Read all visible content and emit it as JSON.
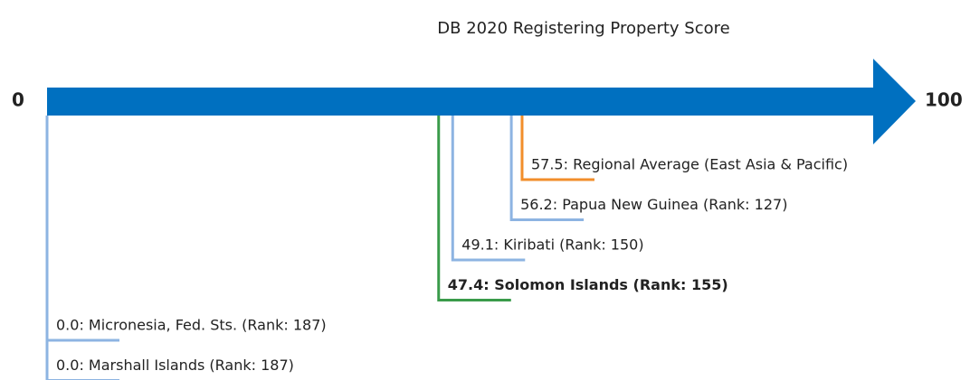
{
  "chart_data": {
    "type": "number-line",
    "title": "DB 2020 Registering Property Score",
    "xlim": [
      0,
      100
    ],
    "xticks": [
      0,
      100
    ],
    "axis_color": "#0070c0",
    "points": [
      {
        "label": "57.5: Regional Average (East Asia & Pacific)",
        "value": 57.5,
        "color": "#f28e2b",
        "bold": false
      },
      {
        "label": "56.2: Papua New Guinea (Rank: 127)",
        "value": 56.2,
        "color": "#8db4e2",
        "bold": false
      },
      {
        "label": "49.1: Kiribati (Rank: 150)",
        "value": 49.1,
        "color": "#8db4e2",
        "bold": false
      },
      {
        "label": "47.4: Solomon Islands (Rank: 155)",
        "value": 47.4,
        "color": "#3a9b4a",
        "bold": true
      },
      {
        "label": "0.0: Micronesia, Fed. Sts. (Rank: 187)",
        "value": 0,
        "color": "#8db4e2",
        "bold": false
      },
      {
        "label": "0.0: Marshall Islands (Rank: 187)",
        "value": 0,
        "color": "#8db4e2",
        "bold": false
      }
    ]
  }
}
